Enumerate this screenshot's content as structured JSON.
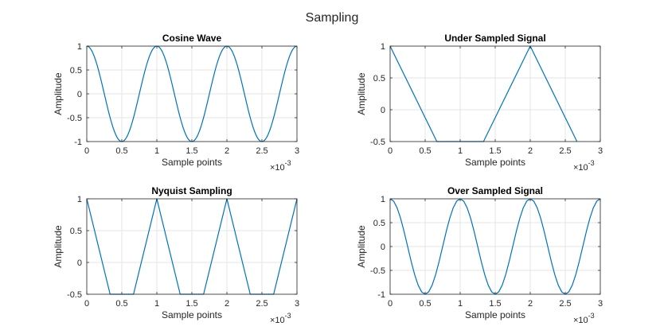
{
  "figure_title": "Sampling",
  "chart_data": [
    {
      "type": "line",
      "title": "Cosine Wave",
      "xlabel": "Sample points",
      "ylabel": "Amplitude",
      "x_exponent_label": "×10",
      "x_exponent": "-3",
      "xlim": [
        0,
        0.003
      ],
      "ylim": [
        -1,
        1
      ],
      "xticks": [
        0,
        0.0005,
        0.001,
        0.0015,
        0.002,
        0.0025,
        0.003
      ],
      "xtick_labels": [
        "0",
        "0.5",
        "1",
        "1.5",
        "2",
        "2.5",
        "3"
      ],
      "yticks": [
        -1,
        -0.5,
        0,
        0.5,
        1
      ],
      "ytick_labels": [
        "-1",
        "-0.5",
        "0",
        "0.5",
        "1"
      ],
      "grid": true,
      "line_color": "#0072BD",
      "series": [
        {
          "function": "cos(2*pi*1000*t)",
          "x_start": 0,
          "x_end": 0.003,
          "points": 301
        }
      ]
    },
    {
      "type": "line",
      "title": "Under Sampled Signal",
      "xlabel": "Sample points",
      "ylabel": "Amplitude",
      "x_exponent_label": "×10",
      "x_exponent": "-3",
      "xlim": [
        0,
        0.003
      ],
      "ylim": [
        -0.5,
        1
      ],
      "xticks": [
        0,
        0.0005,
        0.001,
        0.0015,
        0.002,
        0.0025,
        0.003
      ],
      "xtick_labels": [
        "0",
        "0.5",
        "1",
        "1.5",
        "2",
        "2.5",
        "3"
      ],
      "yticks": [
        -0.5,
        0,
        0.5,
        1
      ],
      "ytick_labels": [
        "-0.5",
        "0",
        "0.5",
        "1"
      ],
      "grid": true,
      "line_color": "#0072BD",
      "series": [
        {
          "x": [
            0,
            0.000667,
            0.001333,
            0.002,
            0.002667
          ],
          "y": [
            1,
            -0.5,
            -0.5,
            1,
            -0.5
          ]
        }
      ]
    },
    {
      "type": "line",
      "title": "Nyquist Sampling",
      "xlabel": "Sample points",
      "ylabel": "Amplitude",
      "x_exponent_label": "×10",
      "x_exponent": "-3",
      "xlim": [
        0,
        0.003
      ],
      "ylim": [
        -0.5,
        1
      ],
      "xticks": [
        0,
        0.0005,
        0.001,
        0.0015,
        0.002,
        0.0025,
        0.003
      ],
      "xtick_labels": [
        "0",
        "0.5",
        "1",
        "1.5",
        "2",
        "2.5",
        "3"
      ],
      "yticks": [
        -0.5,
        0,
        0.5,
        1
      ],
      "ytick_labels": [
        "-0.5",
        "0",
        "0.5",
        "1"
      ],
      "grid": true,
      "line_color": "#0072BD",
      "series": [
        {
          "x": [
            0,
            0.000333,
            0.000667,
            0.001,
            0.001333,
            0.001667,
            0.002,
            0.002333,
            0.002667,
            0.003
          ],
          "y": [
            1,
            -0.5,
            -0.5,
            1,
            -0.5,
            -0.5,
            1,
            -0.5,
            -0.5,
            1
          ]
        }
      ]
    },
    {
      "type": "line",
      "title": "Over Sampled Signal",
      "xlabel": "Sample points",
      "ylabel": "Amplitude",
      "x_exponent_label": "×10",
      "x_exponent": "-3",
      "xlim": [
        0,
        0.003
      ],
      "ylim": [
        -1,
        1
      ],
      "xticks": [
        0,
        0.0005,
        0.001,
        0.0015,
        0.002,
        0.0025,
        0.003
      ],
      "xtick_labels": [
        "0",
        "0.5",
        "1",
        "1.5",
        "2",
        "2.5",
        "3"
      ],
      "yticks": [
        -1,
        -0.5,
        0,
        0.5,
        1
      ],
      "ytick_labels": [
        "-1",
        "-0.5",
        "0",
        "0.5",
        "1"
      ],
      "grid": true,
      "line_color": "#0072BD",
      "series": [
        {
          "function": "cos(2*pi*1000*t)",
          "x_start": 0,
          "x_end": 0.003,
          "points": 61
        }
      ]
    }
  ]
}
